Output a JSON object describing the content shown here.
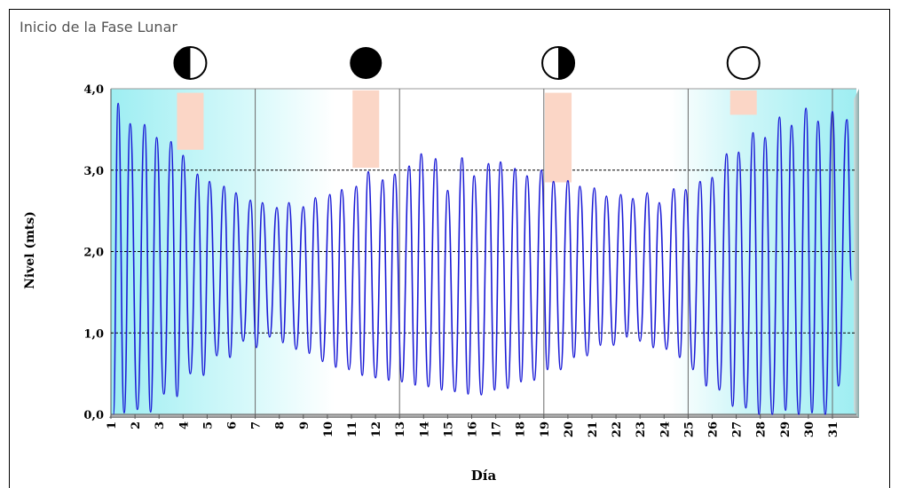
{
  "title": "Inicio de la Fase Lunar",
  "colors": {
    "line": "#1a1ad6",
    "plot_bg_left": "#a8f0f4",
    "plot_bg_mid": "#ffffff",
    "plot_bg_right": "#a8f0f4",
    "phase_marker": "#fbd6c6",
    "gridline_dashed": "#000000",
    "gridline_vertical": "#6a6a6a"
  },
  "chart_data": {
    "type": "line",
    "title": "Inicio de la Fase Lunar",
    "xlabel": "Día",
    "ylabel": "Nivel (mts)",
    "ylim": [
      0,
      4
    ],
    "xlim": [
      1,
      32
    ],
    "y_ticks": [
      "0,0",
      "1,0",
      "2,0",
      "3,0",
      "4,0"
    ],
    "x_ticks": [
      "1",
      "2",
      "3",
      "4",
      "5",
      "6",
      "7",
      "8",
      "9",
      "10",
      "11",
      "12",
      "13",
      "14",
      "15",
      "16",
      "17",
      "18",
      "19",
      "20",
      "21",
      "22",
      "23",
      "24",
      "25",
      "26",
      "27",
      "28",
      "29",
      "30",
      "31"
    ],
    "grid": "horizontal dashed at 1,0 2,0 3,0; vertical at days 7, 13, 19, 25, 31",
    "series": [
      {
        "interpolation": "smooth, two tides per day",
        "peaks_x": [
          1.3,
          1.8,
          2.4,
          2.9,
          3.5,
          4.0,
          4.6,
          5.1,
          5.7,
          6.2,
          6.8,
          7.3,
          7.9,
          8.4,
          9.0,
          9.5,
          10.1,
          10.6,
          11.2,
          11.7,
          12.3,
          12.8,
          13.4,
          13.9,
          14.5,
          15.0,
          15.6,
          16.1,
          16.7,
          17.2,
          17.8,
          18.3,
          18.9,
          19.4,
          20.0,
          20.5,
          21.1,
          21.6,
          22.2,
          22.7,
          23.3,
          23.8,
          24.4,
          24.9,
          25.5,
          26.0,
          26.6,
          27.1,
          27.7,
          28.2,
          28.8,
          29.3,
          29.9,
          30.4,
          31.0,
          31.6
        ],
        "peaks_y": [
          3.82,
          3.57,
          3.56,
          3.4,
          3.35,
          3.18,
          2.95,
          2.86,
          2.8,
          2.72,
          2.63,
          2.6,
          2.54,
          2.6,
          2.55,
          2.66,
          2.7,
          2.76,
          2.8,
          2.98,
          2.88,
          2.95,
          3.05,
          3.2,
          3.14,
          2.75,
          3.15,
          2.93,
          3.08,
          3.1,
          3.02,
          2.93,
          3.0,
          2.86,
          2.87,
          2.8,
          2.78,
          2.68,
          2.7,
          2.65,
          2.72,
          2.6,
          2.77,
          2.76,
          2.86,
          2.91,
          3.2,
          3.22,
          3.46,
          3.4,
          3.65,
          3.55,
          3.76,
          3.6,
          3.72,
          3.62
        ],
        "troughs_x": [
          1.1,
          1.55,
          2.1,
          2.65,
          3.2,
          3.75,
          4.3,
          4.85,
          5.4,
          5.95,
          6.5,
          7.05,
          7.6,
          8.15,
          8.7,
          9.25,
          9.8,
          10.35,
          10.9,
          11.45,
          12.0,
          12.55,
          13.1,
          13.65,
          14.2,
          14.75,
          15.3,
          15.85,
          16.4,
          16.95,
          17.5,
          18.05,
          18.6,
          19.15,
          19.7,
          20.25,
          20.8,
          21.35,
          21.9,
          22.45,
          23.0,
          23.55,
          24.1,
          24.65,
          25.2,
          25.75,
          26.3,
          26.85,
          27.4,
          27.95,
          28.5,
          29.05,
          29.6,
          30.15,
          30.7,
          31.25,
          31.8
        ],
        "troughs_y": [
          0.0,
          0.02,
          0.06,
          0.03,
          0.25,
          0.22,
          0.5,
          0.48,
          0.72,
          0.7,
          0.9,
          0.82,
          0.95,
          0.88,
          0.8,
          0.75,
          0.65,
          0.58,
          0.55,
          0.48,
          0.45,
          0.42,
          0.4,
          0.36,
          0.34,
          0.3,
          0.28,
          0.25,
          0.24,
          0.3,
          0.32,
          0.4,
          0.42,
          0.55,
          0.55,
          0.7,
          0.72,
          0.85,
          0.85,
          0.95,
          0.9,
          0.82,
          0.8,
          0.7,
          0.55,
          0.35,
          0.3,
          0.1,
          0.08,
          0.0,
          0.0,
          0.05,
          0.0,
          0.02,
          0.0,
          0.35,
          1.65
        ]
      }
    ],
    "annotations": [
      {
        "label": "first-quarter",
        "day": 4.3,
        "y_top": 3.95,
        "y_bottom": 3.25
      },
      {
        "label": "new-moon",
        "day": 11.6,
        "y_top": 3.98,
        "y_bottom": 3.03
      },
      {
        "label": "last-quarter",
        "day": 19.6,
        "y_top": 3.95,
        "y_bottom": 2.85
      },
      {
        "label": "full-moon",
        "day": 27.3,
        "y_top": 3.98,
        "y_bottom": 3.68
      }
    ]
  }
}
